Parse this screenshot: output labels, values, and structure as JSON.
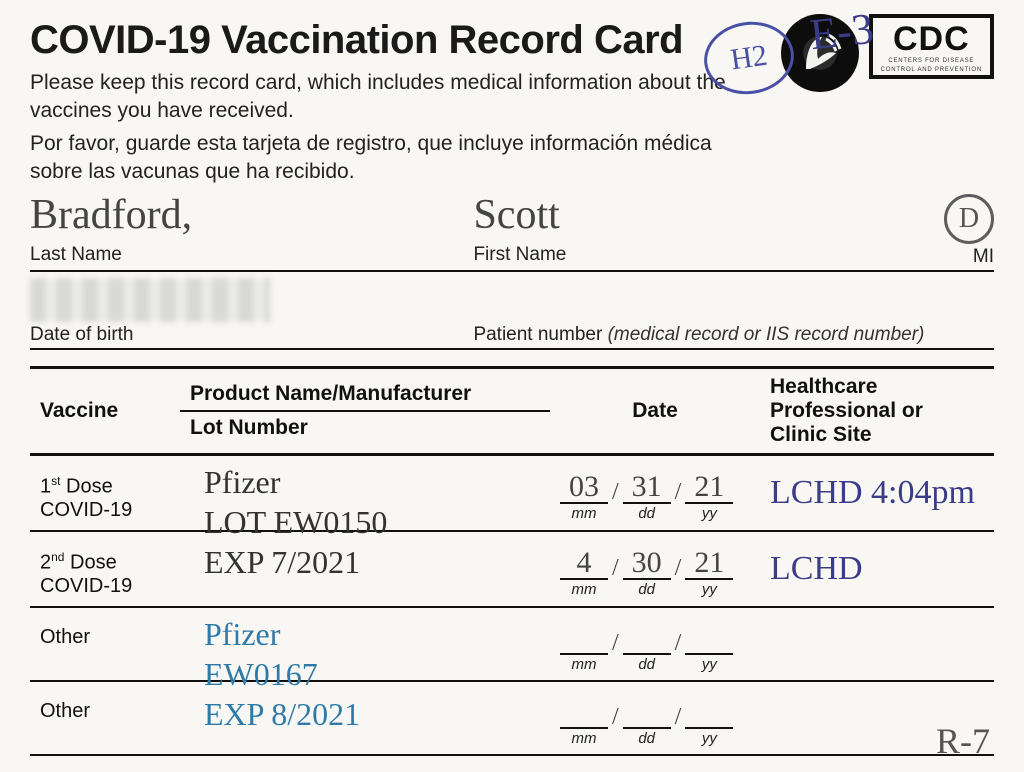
{
  "header": {
    "title": "COVID-19 Vaccination Record Card",
    "instruction_en": "Please keep this record card, which includes medical information about the vaccines you have received.",
    "instruction_es": "Por favor, guarde esta tarjeta de registro, que incluye información médica sobre las vacunas que ha recibido.",
    "cdc_label": "CDC",
    "cdc_sub1": "CENTERS FOR DISEASE",
    "cdc_sub2": "CONTROL AND PREVENTION",
    "handwritten_top": "E-3",
    "handwritten_circle": "H2"
  },
  "patient": {
    "last_name_label": "Last Name",
    "last_name": "Bradford,",
    "first_name_label": "First Name",
    "first_name": "Scott",
    "mi_label": "MI",
    "mi": "D",
    "dob_label": "Date of birth",
    "patient_number_label_plain": "Patient number ",
    "patient_number_label_italic": "(medical record or IIS record number)"
  },
  "table": {
    "col_vaccine": "Vaccine",
    "col_product_top": "Product Name/Manufacturer",
    "col_product_bottom": "Lot Number",
    "col_date": "Date",
    "col_site": "Healthcare Professional or Clinic Site",
    "date_units": {
      "mm": "mm",
      "dd": "dd",
      "yy": "yy"
    },
    "rows": [
      {
        "label_pre": "1",
        "label_sup": "st",
        "label_post": " Dose",
        "label_line2": "COVID-19",
        "product_line1": "Pfizer",
        "product_line2": "LOT EW0150",
        "product_line3": "EXP 7/2021",
        "product_color": "dark",
        "date_mm": "03",
        "date_dd": "31",
        "date_yy": "21",
        "site": "LCHD 4:04pm"
      },
      {
        "label_pre": "2",
        "label_sup": "nd",
        "label_post": " Dose",
        "label_line2": "COVID-19",
        "product_line1": "",
        "product_line2": "",
        "product_line3": "",
        "product_color": "dark",
        "date_mm": "4",
        "date_dd": "30",
        "date_yy": "21",
        "site": "LCHD"
      },
      {
        "label_pre": "Other",
        "label_sup": "",
        "label_post": "",
        "label_line2": "",
        "product_line1": "Pfizer",
        "product_line2": "EW0167",
        "product_line3": "EXP 8/2021",
        "product_color": "blue",
        "date_mm": "",
        "date_dd": "",
        "date_yy": "",
        "site": ""
      },
      {
        "label_pre": "Other",
        "label_sup": "",
        "label_post": "",
        "label_line2": "",
        "product_line1": "",
        "product_line2": "",
        "product_line3": "",
        "product_color": "dark",
        "date_mm": "",
        "date_dd": "",
        "date_yy": "",
        "site": "R-7",
        "site_color": "gray"
      }
    ]
  }
}
